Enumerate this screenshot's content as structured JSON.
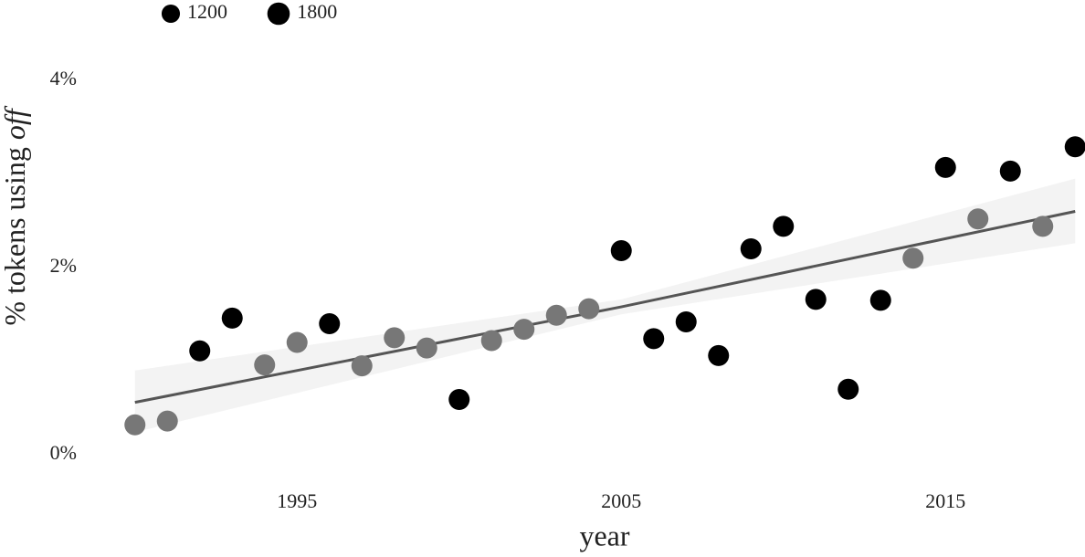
{
  "chart_data": {
    "type": "scatter",
    "xlabel": "year",
    "ylabel": "% tokens using",
    "ylabel_emphasis": "off",
    "x": [
      1990,
      1991,
      1992,
      1993,
      1994,
      1995,
      1996,
      1997,
      1998,
      1999,
      2000,
      2001,
      2002,
      2003,
      2004,
      2005,
      2006,
      2007,
      2008,
      2009,
      2010,
      2011,
      2012,
      2013,
      2014,
      2015,
      2016,
      2017,
      2018,
      2019
    ],
    "values": [
      0.32,
      0.36,
      1.11,
      1.46,
      0.96,
      1.2,
      1.4,
      0.95,
      1.25,
      1.14,
      0.59,
      1.22,
      1.34,
      1.49,
      1.56,
      2.18,
      1.24,
      1.42,
      1.06,
      2.2,
      2.44,
      1.66,
      0.7,
      1.65,
      2.1,
      3.07,
      2.52,
      3.03,
      2.44,
      3.29
    ],
    "point_colors": [
      "#777",
      "#777",
      "#000",
      "#000",
      "#777",
      "#777",
      "#000",
      "#777",
      "#777",
      "#777",
      "#000",
      "#777",
      "#777",
      "#777",
      "#777",
      "#000",
      "#000",
      "#000",
      "#000",
      "#000",
      "#000",
      "#000",
      "#000",
      "#000",
      "#777",
      "#000",
      "#777",
      "#000",
      "#777",
      "#000"
    ],
    "trend": {
      "x": [
        1990,
        2005,
        2019
      ],
      "values": [
        0.56,
        1.58,
        2.6
      ],
      "lower": [
        0.24,
        1.5,
        2.26
      ],
      "upper": [
        0.9,
        1.66,
        2.95
      ],
      "color": "#555",
      "band_color": "#f3f3f3"
    },
    "size_legend": [
      1200,
      1800
    ],
    "xlim": [
      1989.5,
      2019.5
    ],
    "ylim": [
      -0.3,
      4.3
    ],
    "xticks": [
      1995,
      2005,
      2015
    ],
    "yticks": [
      {
        "value": 0,
        "label": "0%"
      },
      {
        "value": 2,
        "label": "2%"
      },
      {
        "value": 4,
        "label": "4%"
      }
    ]
  }
}
